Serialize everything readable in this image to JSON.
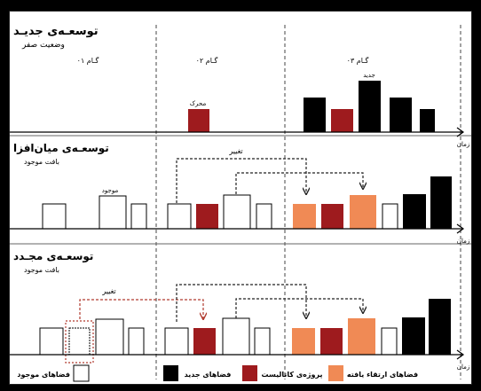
{
  "sections": {
    "new_dev": {
      "title": "توسعـه‌ی جدیـد",
      "subtitle": "وضعیت صفر",
      "steps": [
        "گـام ۰۱",
        "گـام ۰۲",
        "گـام ۰۳"
      ],
      "label_catalyst": "محرک",
      "label_new": "جدید"
    },
    "infill": {
      "title": "توسعـه‌ی میان‌افزا",
      "subtitle": "بافت موجود",
      "label_existing": "موجود",
      "label_change": "تغییر"
    },
    "renewal": {
      "title": "توسعـه‌ی مجـدد",
      "subtitle": "بافت موجود",
      "label_change": "تغییر"
    }
  },
  "axis": {
    "time_label": "زمان"
  },
  "legend": {
    "existing": "فضاهای موجود",
    "new": "فضاهای جدید",
    "catalyst": "پروژه‌ی کاتالیست",
    "upgraded": "فضاهای ارتقاء یافته"
  },
  "colors": {
    "new": "#000000",
    "catalyst": "#9e1b1e",
    "upgraded": "#f08a55",
    "existing": "#ffffff",
    "change_arrow_black": "#222222",
    "change_arrow_red": "#b03a2e"
  }
}
